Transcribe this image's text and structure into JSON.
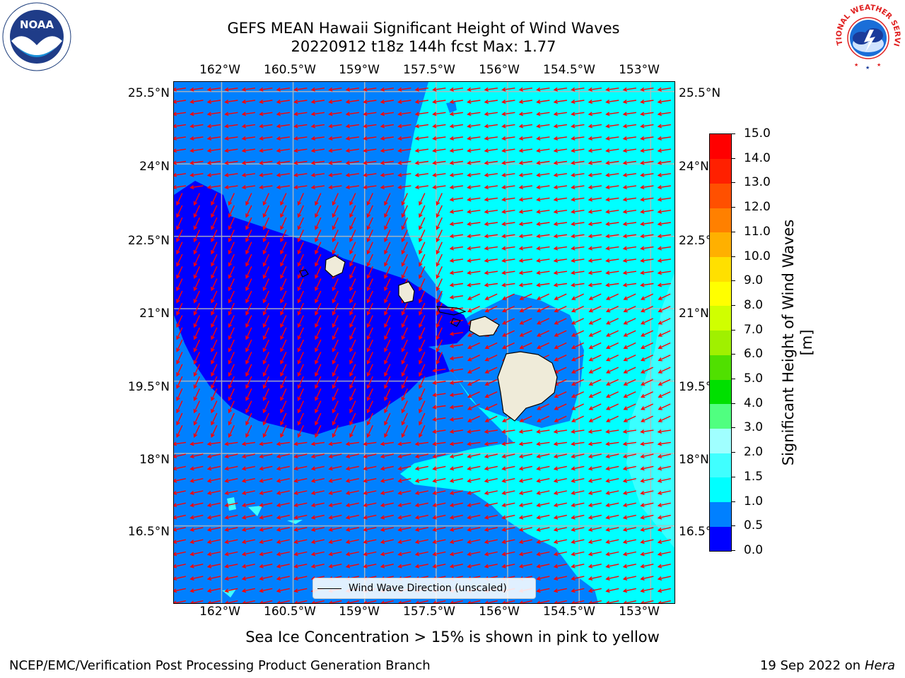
{
  "title": {
    "line1": "GEFS MEAN Hawaii Significant Height of Wind Waves",
    "line2": "20220912 t18z 144h fcst   Max: 1.77"
  },
  "map": {
    "lon_ticks": [
      "162°W",
      "160.5°W",
      "159°W",
      "157.5°W",
      "156°W",
      "154.5°W",
      "153°W"
    ],
    "lat_ticks": [
      "25.5°N",
      "24°N",
      "22.5°N",
      "21°N",
      "19.5°N",
      "18°N",
      "16.5°N"
    ],
    "extent": {
      "lon_min": -163.0,
      "lon_max": -152.5,
      "lat_min": 14.9,
      "lat_max": 25.7
    },
    "legend_label": "Wind Wave Direction (unscaled)",
    "arrow_color": "#ff0000",
    "land_color": "#efebd9"
  },
  "colorbar": {
    "label": "Significant Height of Wind Waves [m]",
    "ticks": [
      "0.0",
      "0.5",
      "1.0",
      "1.5",
      "2.0",
      "3.0",
      "4.0",
      "5.0",
      "6.0",
      "7.0",
      "8.0",
      "9.0",
      "10.0",
      "11.0",
      "12.0",
      "13.0",
      "14.0",
      "15.0"
    ],
    "colors": [
      "#0000ff",
      "#0080ff",
      "#00ffff",
      "#40ffff",
      "#a0ffff",
      "#50ff80",
      "#00e000",
      "#50e000",
      "#a0f000",
      "#d0ff00",
      "#ffff00",
      "#ffe000",
      "#ffb000",
      "#ff8000",
      "#ff5000",
      "#ff2000",
      "#ff0000"
    ]
  },
  "ice_note": "Sea Ice Concentration > 15% is shown in pink to yellow",
  "footer": {
    "left": "NCEP/EMC/Verification Post Processing Product Generation Branch",
    "right_prefix": "19 Sep 2022 on",
    "right_host": "Hera"
  },
  "logos": {
    "noaa_text": "NOAA",
    "nws_text": "NATIONAL WEATHER SERVICE"
  }
}
